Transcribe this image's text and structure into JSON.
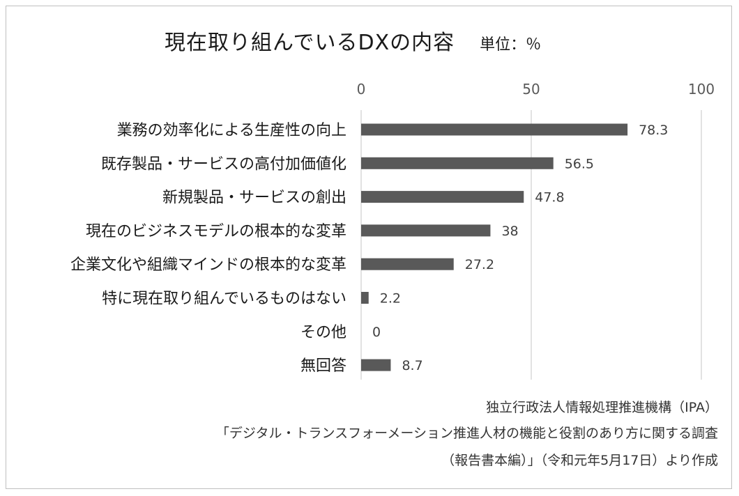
{
  "chart_data": {
    "type": "bar",
    "orientation": "horizontal",
    "title": "現在取り組んでいるDXの内容",
    "unit_label": "単位：％",
    "xlim": [
      0,
      100
    ],
    "xticks": [
      0,
      50,
      100
    ],
    "grid": true,
    "legend": "none",
    "bar_color": "#595959",
    "categories": [
      "業務の効率化による生産性の向上",
      "既存製品・サービスの高付加価値化",
      "新規製品・サービスの創出",
      "現在のビジネスモデルの根本的な変革",
      "企業文化や組織マインドの根本的な変革",
      "特に現在取り組んでいるものはない",
      "その他",
      "無回答"
    ],
    "values": [
      78.3,
      56.5,
      47.8,
      38,
      27.2,
      2.2,
      0,
      8.7
    ],
    "value_labels": [
      "78.3",
      "56.5",
      "47.8",
      "38",
      "27.2",
      "2.2",
      "0",
      "8.7"
    ]
  },
  "source": {
    "line1": "独立行政法人情報処理推進機構（IPA）",
    "line2": "「デジタル・トランスフォーメーション推進人材の機能と役割のあり方に関する調査",
    "line3": "（報告書本編）」（令和元年5月17日）より作成"
  }
}
